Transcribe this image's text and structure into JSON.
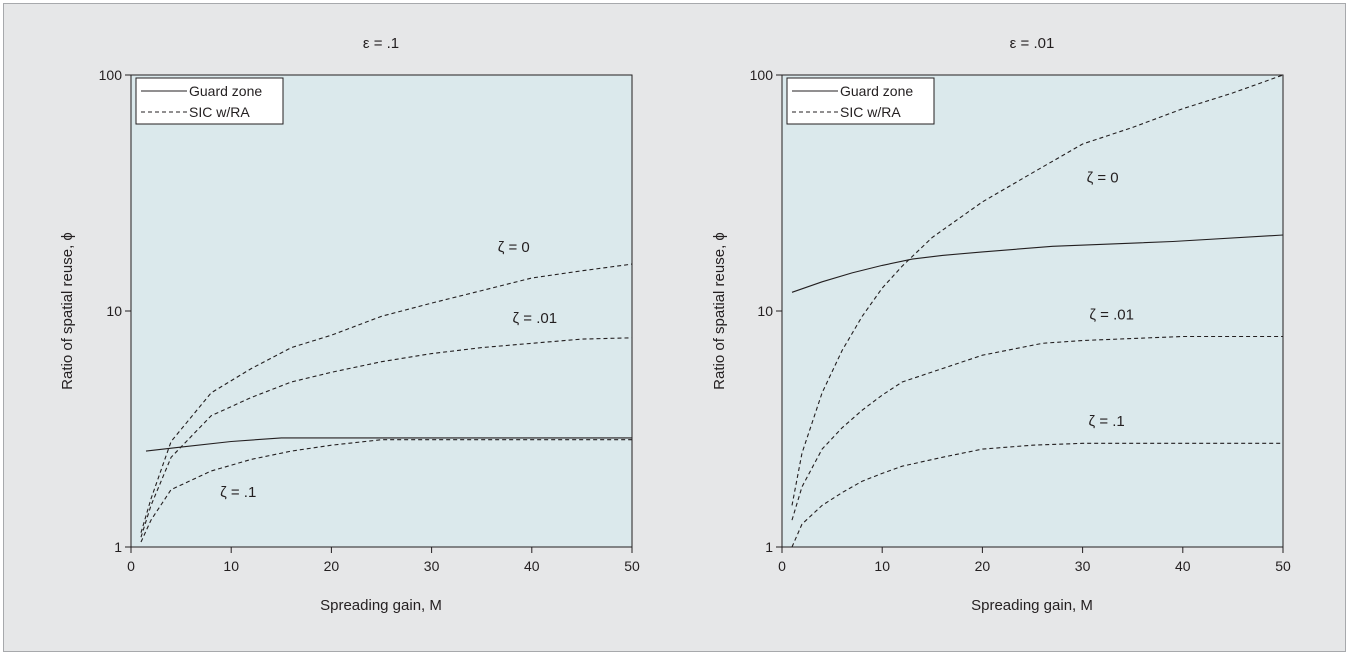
{
  "colors": {
    "figure_bg": "#e6e7e8",
    "plot_bg": "#dbe9ec",
    "ink": "#231f20"
  },
  "chart_data": [
    {
      "type": "line",
      "title": "ε = .1",
      "xlabel": "Spreading gain, M",
      "ylabel": "Ratio of spatial reuse, ϕ",
      "xlim": [
        0,
        50
      ],
      "ylim": [
        1,
        100
      ],
      "yscale": "log",
      "x_ticks": [
        "0",
        "10",
        "20",
        "30",
        "40",
        "50"
      ],
      "y_ticks": [
        "1",
        "10",
        "100"
      ],
      "legend_position": "top-left",
      "legend": [
        {
          "label": "Guard zone",
          "style": "solid"
        },
        {
          "label": "SIC w/RA",
          "style": "dashed"
        }
      ],
      "series": [
        {
          "name": "Guard zone",
          "style": "solid",
          "points": [
            [
              1.5,
              2.55
            ],
            [
              5,
              2.65
            ],
            [
              10,
              2.8
            ],
            [
              15,
              2.9
            ],
            [
              16,
              2.9
            ],
            [
              20,
              2.9
            ],
            [
              30,
              2.9
            ],
            [
              40,
              2.9
            ],
            [
              50,
              2.9
            ]
          ]
        },
        {
          "label": "ζ = 0",
          "style": "dashed",
          "points": [
            [
              1,
              1.15
            ],
            [
              2,
              1.6
            ],
            [
              4,
              2.8
            ],
            [
              8,
              4.5
            ],
            [
              12,
              5.7
            ],
            [
              16,
              7.0
            ],
            [
              20,
              7.9
            ],
            [
              25,
              9.5
            ],
            [
              30,
              10.8
            ],
            [
              35,
              12.2
            ],
            [
              40,
              13.8
            ],
            [
              45,
              14.8
            ],
            [
              50,
              15.8
            ]
          ]
        },
        {
          "label": "ζ = .01",
          "style": "dashed",
          "points": [
            [
              1,
              1.1
            ],
            [
              2,
              1.5
            ],
            [
              4,
              2.4
            ],
            [
              8,
              3.6
            ],
            [
              12,
              4.3
            ],
            [
              16,
              5.0
            ],
            [
              20,
              5.5
            ],
            [
              25,
              6.1
            ],
            [
              30,
              6.6
            ],
            [
              35,
              7.0
            ],
            [
              40,
              7.3
            ],
            [
              45,
              7.6
            ],
            [
              50,
              7.7
            ]
          ]
        },
        {
          "label": "ζ = .1",
          "style": "dashed",
          "points": [
            [
              1,
              1.05
            ],
            [
              2,
              1.3
            ],
            [
              4,
              1.75
            ],
            [
              8,
              2.1
            ],
            [
              12,
              2.35
            ],
            [
              16,
              2.55
            ],
            [
              20,
              2.7
            ],
            [
              25,
              2.85
            ],
            [
              30,
              2.85
            ],
            [
              35,
              2.85
            ],
            [
              40,
              2.85
            ],
            [
              45,
              2.85
            ],
            [
              50,
              2.85
            ]
          ]
        }
      ],
      "annotations": [
        {
          "text": "ζ = 0",
          "x": 38.2,
          "y": 17.8
        },
        {
          "text": "ζ = .01",
          "x": 40.3,
          "y": 8.9
        },
        {
          "text": "ζ = .1",
          "x": 10.7,
          "y": 1.63
        }
      ]
    },
    {
      "type": "line",
      "title": "ε = .01",
      "xlabel": "Spreading gain, M",
      "ylabel": "Ratio of spatial reuse, ϕ",
      "xlim": [
        0,
        50
      ],
      "ylim": [
        1,
        100
      ],
      "yscale": "log",
      "x_ticks": [
        "0",
        "10",
        "20",
        "30",
        "40",
        "50"
      ],
      "y_ticks": [
        "1",
        "10",
        "100"
      ],
      "legend_position": "top-left",
      "legend": [
        {
          "label": "Guard zone",
          "style": "solid"
        },
        {
          "label": "SIC w/RA",
          "style": "dashed"
        }
      ],
      "series": [
        {
          "name": "Guard zone",
          "style": "solid",
          "points": [
            [
              1,
              12.0
            ],
            [
              4,
              13.3
            ],
            [
              7,
              14.5
            ],
            [
              10,
              15.6
            ],
            [
              13,
              16.6
            ],
            [
              16,
              17.2
            ],
            [
              20,
              17.8
            ],
            [
              27,
              18.8
            ],
            [
              39,
              19.7
            ],
            [
              50,
              21.0
            ]
          ]
        },
        {
          "label": "ζ = 0",
          "style": "dashed",
          "points": [
            [
              1,
              1.5
            ],
            [
              2,
              2.5
            ],
            [
              4,
              4.5
            ],
            [
              6,
              6.8
            ],
            [
              8,
              9.5
            ],
            [
              10,
              12.5
            ],
            [
              12,
              15.5
            ],
            [
              15,
              20.5
            ],
            [
              20,
              29.0
            ],
            [
              25,
              38.5
            ],
            [
              30,
              51.0
            ],
            [
              35,
              60.0
            ],
            [
              40,
              72.0
            ],
            [
              45,
              84.0
            ],
            [
              50,
              100.0
            ]
          ]
        },
        {
          "label": "ζ = .01",
          "style": "dashed",
          "points": [
            [
              1,
              1.3
            ],
            [
              2,
              1.8
            ],
            [
              4,
              2.6
            ],
            [
              6,
              3.2
            ],
            [
              8,
              3.8
            ],
            [
              10,
              4.4
            ],
            [
              12,
              5.0
            ],
            [
              16,
              5.7
            ],
            [
              20,
              6.5
            ],
            [
              26,
              7.3
            ],
            [
              30,
              7.5
            ],
            [
              40,
              7.8
            ],
            [
              50,
              7.8
            ]
          ]
        },
        {
          "label": "ζ = .1",
          "style": "dashed",
          "points": [
            [
              1,
              1.0
            ],
            [
              2,
              1.25
            ],
            [
              4,
              1.5
            ],
            [
              6,
              1.7
            ],
            [
              8,
              1.9
            ],
            [
              10,
              2.05
            ],
            [
              12,
              2.2
            ],
            [
              16,
              2.4
            ],
            [
              20,
              2.6
            ],
            [
              25,
              2.7
            ],
            [
              30,
              2.75
            ],
            [
              40,
              2.75
            ],
            [
              50,
              2.75
            ]
          ]
        }
      ],
      "annotations": [
        {
          "text": "ζ = 0",
          "x": 32.0,
          "y": 35.0
        },
        {
          "text": "ζ = .01",
          "x": 32.9,
          "y": 9.2
        },
        {
          "text": "ζ = .1",
          "x": 32.4,
          "y": 3.25
        }
      ]
    }
  ]
}
